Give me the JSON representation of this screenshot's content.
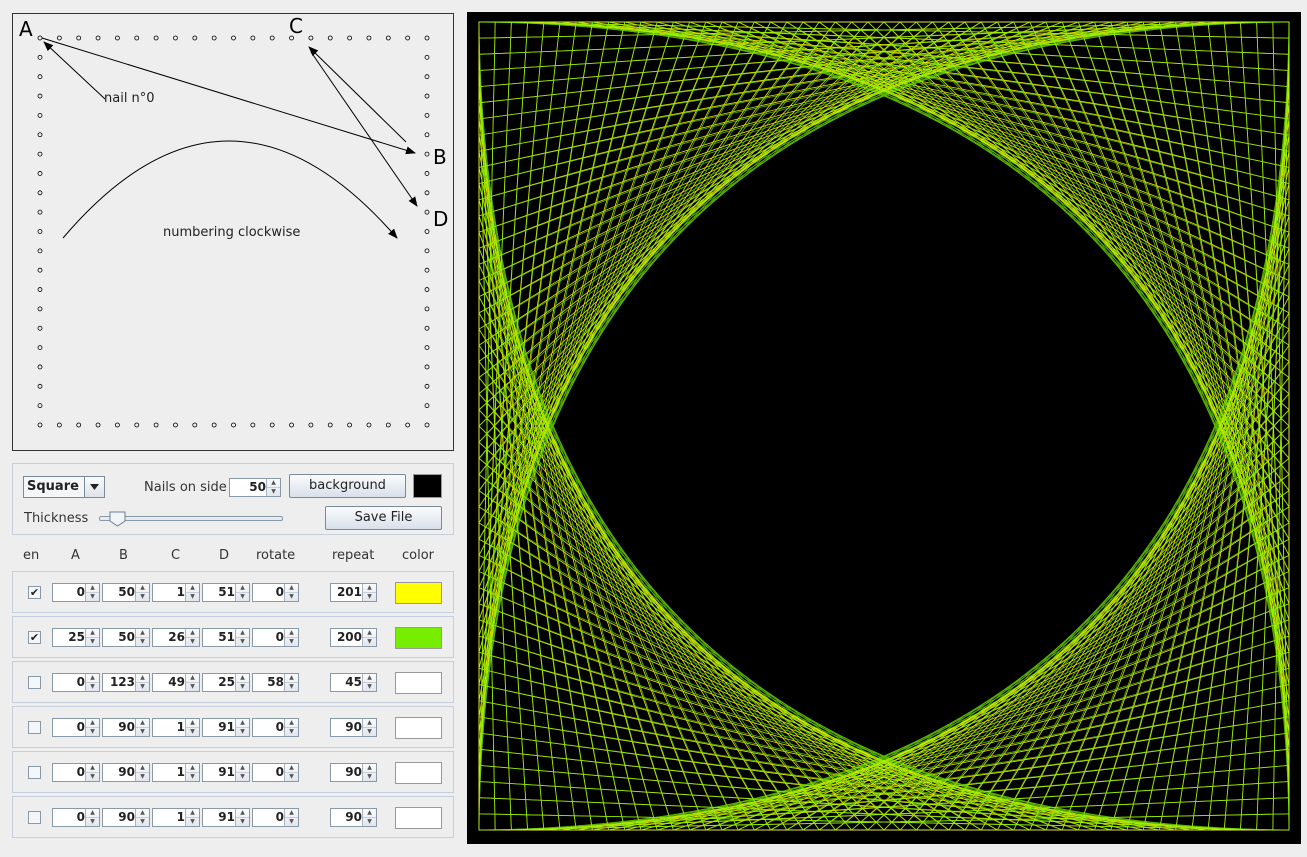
{
  "diagram": {
    "corner_a": "A",
    "corner_b": "B",
    "corner_c": "C",
    "corner_d": "D",
    "nail_label": "nail n°0",
    "numbering_label": "numbering clockwise"
  },
  "controls": {
    "shape_value": "Square",
    "nails_label": "Nails on side",
    "nails_value": "50",
    "background_button": "background",
    "background_color": "#000000",
    "thickness_label": "Thickness",
    "thickness_level": 0.1,
    "save_button": "Save File"
  },
  "headers": {
    "en": "en",
    "a": "A",
    "b": "B",
    "c": "C",
    "d": "D",
    "rotate": "rotate",
    "repeat": "repeat",
    "color": "color"
  },
  "rows": [
    {
      "enabled": true,
      "check": "✔",
      "a": "0",
      "b": "50",
      "c": "1",
      "d": "51",
      "rotate": "0",
      "repeat": "201",
      "color": "#ffff00"
    },
    {
      "enabled": true,
      "check": "✔",
      "a": "25",
      "b": "50",
      "c": "26",
      "d": "51",
      "rotate": "0",
      "repeat": "200",
      "color": "#77ee00"
    },
    {
      "enabled": false,
      "check": "",
      "a": "0",
      "b": "123",
      "c": "49",
      "d": "25",
      "rotate": "58",
      "repeat": "45",
      "color": "#ffffff"
    },
    {
      "enabled": false,
      "check": "",
      "a": "0",
      "b": "90",
      "c": "1",
      "d": "91",
      "rotate": "0",
      "repeat": "90",
      "color": "#ffffff"
    },
    {
      "enabled": false,
      "check": "",
      "a": "0",
      "b": "90",
      "c": "1",
      "d": "91",
      "rotate": "0",
      "repeat": "90",
      "color": "#ffffff"
    },
    {
      "enabled": false,
      "check": "",
      "a": "0",
      "b": "90",
      "c": "1",
      "d": "91",
      "rotate": "0",
      "repeat": "90",
      "color": "#ffffff"
    }
  ],
  "canvas": {
    "border_color": "#ffffff",
    "colors": [
      "#ffff00",
      "#77ee00"
    ]
  }
}
